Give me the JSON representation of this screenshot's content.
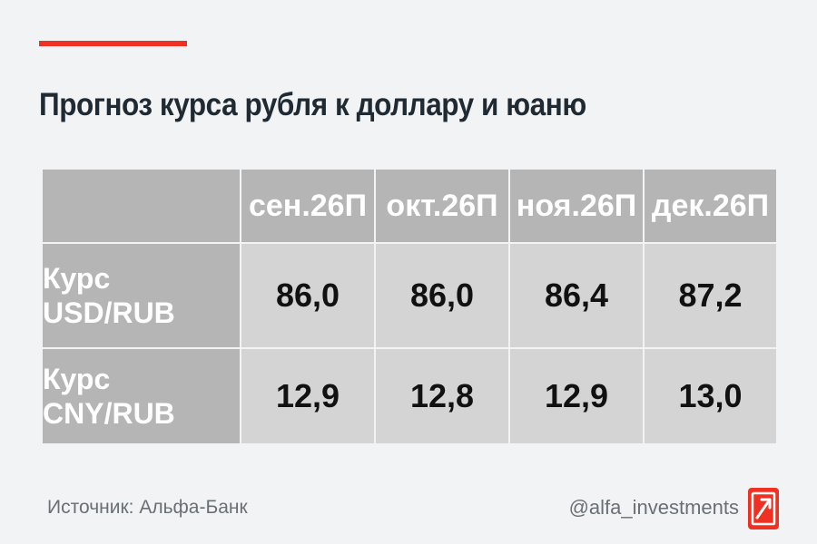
{
  "title": "Прогноз курса рубля к доллару и юаню",
  "chart_data": {
    "type": "table",
    "title": "Прогноз курса рубля к доллару и юаню",
    "columns": [
      "сен.26П",
      "окт.26П",
      "ноя.26П",
      "дек.26П"
    ],
    "rows": [
      {
        "label_line1": "Курс",
        "label_line2": "USD/RUB",
        "values": [
          "86,0",
          "86,0",
          "86,4",
          "87,2"
        ]
      },
      {
        "label_line1": "Курс",
        "label_line2": "CNY/RUB",
        "values": [
          "12,9",
          "12,8",
          "12,9",
          "13,0"
        ]
      }
    ]
  },
  "footer": {
    "source": "Источник: Альфа-Банк",
    "handle": "@alfa_investments"
  },
  "colors": {
    "accent": "#ef3124",
    "header_bg": "#b5b5b5",
    "cell_bg": "#d4d4d4",
    "page_bg": "#f2f3f5"
  },
  "icons": {
    "logo": "alfa-arrow-logo-icon"
  }
}
